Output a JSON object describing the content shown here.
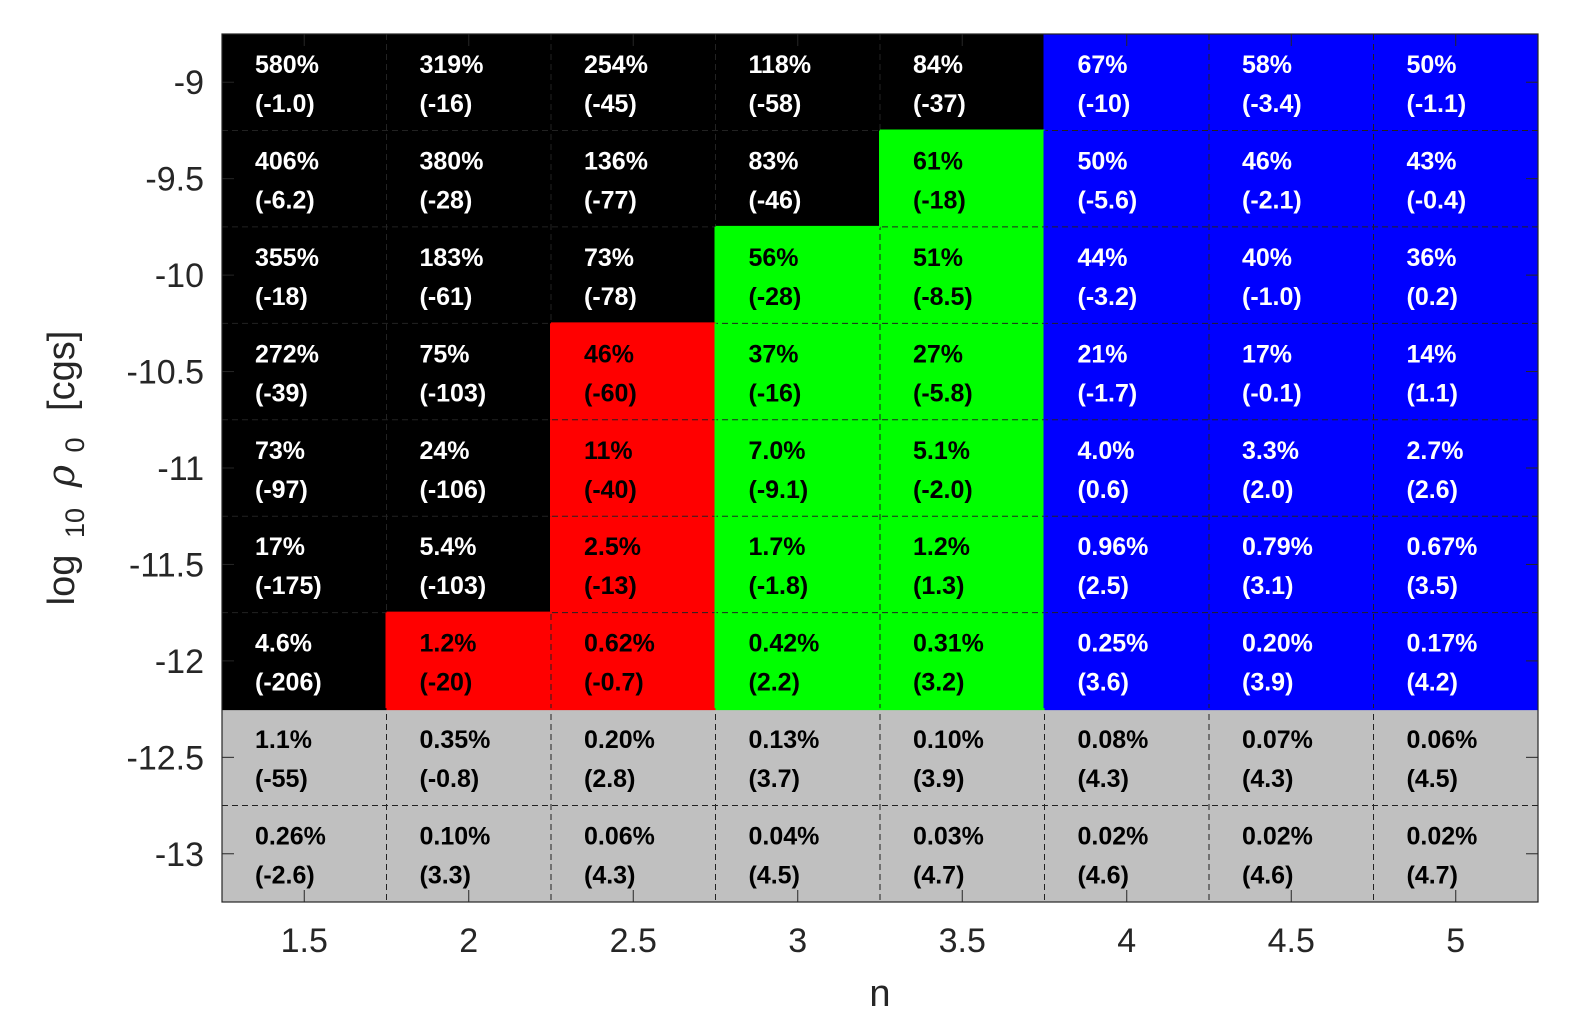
{
  "chart_data": {
    "type": "heatmap",
    "title": "",
    "xlabel": "n",
    "ylabel_parts": {
      "log": "log",
      "sub": "10",
      "rho": "ρ",
      "rho_sub": "0",
      "unit": "[cgs]"
    },
    "x": [
      1.5,
      2,
      2.5,
      3,
      3.5,
      4,
      4.5,
      5
    ],
    "x_tick_labels": [
      "1.5",
      "2",
      "2.5",
      "3",
      "3.5",
      "4",
      "4.5",
      "5"
    ],
    "y": [
      -9,
      -9.5,
      -10,
      -10.5,
      -11,
      -11.5,
      -12,
      -12.5,
      -13
    ],
    "y_tick_labels": [
      "-9",
      "-9.5",
      "-10",
      "-10.5",
      "-11",
      "-11.5",
      "-12",
      "-12.5",
      "-13"
    ],
    "xlim": [
      1.25,
      5.25
    ],
    "ylim": [
      -13.25,
      -8.75
    ],
    "grid": "dashed cell borders",
    "category_colors": {
      "black": "#000000",
      "red": "#ff0000",
      "green": "#00ff00",
      "blue": "#0000ff",
      "gray": "#c0c0c0"
    },
    "cells": [
      [
        {
          "pct": "580%",
          "val": "(-1.0)",
          "cat": "black"
        },
        {
          "pct": "319%",
          "val": "(-16)",
          "cat": "black"
        },
        {
          "pct": "254%",
          "val": "(-45)",
          "cat": "black"
        },
        {
          "pct": "118%",
          "val": "(-58)",
          "cat": "black"
        },
        {
          "pct": "84%",
          "val": "(-37)",
          "cat": "black"
        },
        {
          "pct": "67%",
          "val": "(-10)",
          "cat": "blue"
        },
        {
          "pct": "58%",
          "val": "(-3.4)",
          "cat": "blue"
        },
        {
          "pct": "50%",
          "val": "(-1.1)",
          "cat": "blue"
        }
      ],
      [
        {
          "pct": "406%",
          "val": "(-6.2)",
          "cat": "black"
        },
        {
          "pct": "380%",
          "val": "(-28)",
          "cat": "black"
        },
        {
          "pct": "136%",
          "val": "(-77)",
          "cat": "black"
        },
        {
          "pct": "83%",
          "val": "(-46)",
          "cat": "black"
        },
        {
          "pct": "61%",
          "val": "(-18)",
          "cat": "green"
        },
        {
          "pct": "50%",
          "val": "(-5.6)",
          "cat": "blue"
        },
        {
          "pct": "46%",
          "val": "(-2.1)",
          "cat": "blue"
        },
        {
          "pct": "43%",
          "val": "(-0.4)",
          "cat": "blue"
        }
      ],
      [
        {
          "pct": "355%",
          "val": "(-18)",
          "cat": "black"
        },
        {
          "pct": "183%",
          "val": "(-61)",
          "cat": "black"
        },
        {
          "pct": "73%",
          "val": "(-78)",
          "cat": "black"
        },
        {
          "pct": "56%",
          "val": "(-28)",
          "cat": "green"
        },
        {
          "pct": "51%",
          "val": "(-8.5)",
          "cat": "green"
        },
        {
          "pct": "44%",
          "val": "(-3.2)",
          "cat": "blue"
        },
        {
          "pct": "40%",
          "val": "(-1.0)",
          "cat": "blue"
        },
        {
          "pct": "36%",
          "val": "(0.2)",
          "cat": "blue"
        }
      ],
      [
        {
          "pct": "272%",
          "val": "(-39)",
          "cat": "black"
        },
        {
          "pct": "75%",
          "val": "(-103)",
          "cat": "black"
        },
        {
          "pct": "46%",
          "val": "(-60)",
          "cat": "red"
        },
        {
          "pct": "37%",
          "val": "(-16)",
          "cat": "green"
        },
        {
          "pct": "27%",
          "val": "(-5.8)",
          "cat": "green"
        },
        {
          "pct": "21%",
          "val": "(-1.7)",
          "cat": "blue"
        },
        {
          "pct": "17%",
          "val": "(-0.1)",
          "cat": "blue"
        },
        {
          "pct": "14%",
          "val": "(1.1)",
          "cat": "blue"
        }
      ],
      [
        {
          "pct": "73%",
          "val": "(-97)",
          "cat": "black"
        },
        {
          "pct": "24%",
          "val": "(-106)",
          "cat": "black"
        },
        {
          "pct": "11%",
          "val": "(-40)",
          "cat": "red"
        },
        {
          "pct": "7.0%",
          "val": "(-9.1)",
          "cat": "green"
        },
        {
          "pct": "5.1%",
          "val": "(-2.0)",
          "cat": "green"
        },
        {
          "pct": "4.0%",
          "val": "(0.6)",
          "cat": "blue"
        },
        {
          "pct": "3.3%",
          "val": "(2.0)",
          "cat": "blue"
        },
        {
          "pct": "2.7%",
          "val": "(2.6)",
          "cat": "blue"
        }
      ],
      [
        {
          "pct": "17%",
          "val": "(-175)",
          "cat": "black"
        },
        {
          "pct": "5.4%",
          "val": "(-103)",
          "cat": "black"
        },
        {
          "pct": "2.5%",
          "val": "(-13)",
          "cat": "red"
        },
        {
          "pct": "1.7%",
          "val": "(-1.8)",
          "cat": "green"
        },
        {
          "pct": "1.2%",
          "val": "(1.3)",
          "cat": "green"
        },
        {
          "pct": "0.96%",
          "val": "(2.5)",
          "cat": "blue"
        },
        {
          "pct": "0.79%",
          "val": "(3.1)",
          "cat": "blue"
        },
        {
          "pct": "0.67%",
          "val": "(3.5)",
          "cat": "blue"
        }
      ],
      [
        {
          "pct": "4.6%",
          "val": "(-206)",
          "cat": "black"
        },
        {
          "pct": "1.2%",
          "val": "(-20)",
          "cat": "red"
        },
        {
          "pct": "0.62%",
          "val": "(-0.7)",
          "cat": "red"
        },
        {
          "pct": "0.42%",
          "val": "(2.2)",
          "cat": "green"
        },
        {
          "pct": "0.31%",
          "val": "(3.2)",
          "cat": "green"
        },
        {
          "pct": "0.25%",
          "val": "(3.6)",
          "cat": "blue"
        },
        {
          "pct": "0.20%",
          "val": "(3.9)",
          "cat": "blue"
        },
        {
          "pct": "0.17%",
          "val": "(4.2)",
          "cat": "blue"
        }
      ],
      [
        {
          "pct": "1.1%",
          "val": "(-55)",
          "cat": "gray"
        },
        {
          "pct": "0.35%",
          "val": "(-0.8)",
          "cat": "gray"
        },
        {
          "pct": "0.20%",
          "val": "(2.8)",
          "cat": "gray"
        },
        {
          "pct": "0.13%",
          "val": "(3.7)",
          "cat": "gray"
        },
        {
          "pct": "0.10%",
          "val": "(3.9)",
          "cat": "gray"
        },
        {
          "pct": "0.08%",
          "val": "(4.3)",
          "cat": "gray"
        },
        {
          "pct": "0.07%",
          "val": "(4.3)",
          "cat": "gray"
        },
        {
          "pct": "0.06%",
          "val": "(4.5)",
          "cat": "gray"
        }
      ],
      [
        {
          "pct": "0.26%",
          "val": "(-2.6)",
          "cat": "gray"
        },
        {
          "pct": "0.10%",
          "val": "(3.3)",
          "cat": "gray"
        },
        {
          "pct": "0.06%",
          "val": "(4.3)",
          "cat": "gray"
        },
        {
          "pct": "0.04%",
          "val": "(4.5)",
          "cat": "gray"
        },
        {
          "pct": "0.03%",
          "val": "(4.7)",
          "cat": "gray"
        },
        {
          "pct": "0.02%",
          "val": "(4.6)",
          "cat": "gray"
        },
        {
          "pct": "0.02%",
          "val": "(4.6)",
          "cat": "gray"
        },
        {
          "pct": "0.02%",
          "val": "(4.7)",
          "cat": "gray"
        }
      ]
    ]
  }
}
